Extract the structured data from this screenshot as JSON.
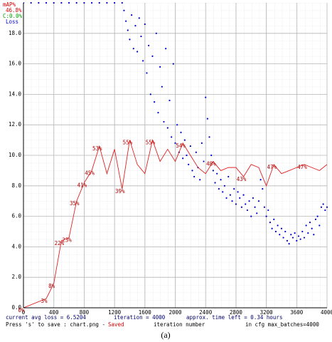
{
  "chart_data": {
    "type": "line",
    "legend": {
      "map_value": "46.8%",
      "class_value": "C:0.0%"
    },
    "xlim": [
      0,
      4000
    ],
    "ylim": [
      0,
      20
    ],
    "y2lim": [
      0,
      100
    ],
    "xticks": [
      0,
      400,
      800,
      1200,
      1600,
      2000,
      2400,
      2800,
      3200,
      3600,
      4000
    ],
    "yticks": [
      {
        "value": 0,
        "label": "0.0"
      },
      {
        "value": 2,
        "label": "2.0"
      },
      {
        "value": 4,
        "label": "4.0"
      },
      {
        "value": 6,
        "label": "6.0"
      },
      {
        "value": 8,
        "label": "8.0"
      },
      {
        "value": 10,
        "label": "10.0"
      },
      {
        "value": 12,
        "label": "12.0"
      },
      {
        "value": 14,
        "label": "14.0"
      },
      {
        "value": 16,
        "label": "16.0"
      },
      {
        "value": 18,
        "label": "18.0"
      }
    ],
    "grid": true,
    "series": [
      {
        "name": "Loss",
        "color": "#0000cc",
        "mark": "dot",
        "x": [
          0,
          100,
          200,
          300,
          400,
          500,
          600,
          700,
          800,
          900,
          1000,
          1100,
          1200,
          1300,
          1325,
          1350,
          1375,
          1400,
          1425,
          1450,
          1475,
          1500,
          1525,
          1550,
          1575,
          1600,
          1625,
          1650,
          1675,
          1700,
          1725,
          1750,
          1775,
          1800,
          1825,
          1850,
          1875,
          1900,
          1925,
          1950,
          1975,
          2000,
          2025,
          2050,
          2075,
          2100,
          2125,
          2150,
          2175,
          2200,
          2225,
          2250,
          2275,
          2300,
          2325,
          2350,
          2375,
          2400,
          2425,
          2450,
          2475,
          2500,
          2525,
          2550,
          2575,
          2600,
          2625,
          2650,
          2675,
          2700,
          2725,
          2750,
          2775,
          2800,
          2825,
          2850,
          2875,
          2900,
          2925,
          2950,
          2975,
          3000,
          3025,
          3050,
          3075,
          3100,
          3125,
          3150,
          3175,
          3200,
          3225,
          3250,
          3275,
          3300,
          3325,
          3350,
          3375,
          3400,
          3425,
          3450,
          3475,
          3500,
          3525,
          3550,
          3575,
          3600,
          3625,
          3650,
          3675,
          3700,
          3725,
          3750,
          3775,
          3800,
          3825,
          3850,
          3875,
          3900,
          3925,
          3950,
          3975,
          4000
        ],
        "values": [
          20,
          20,
          20,
          20,
          20,
          20,
          20,
          20,
          20,
          20,
          20,
          20,
          20,
          20,
          19.5,
          18.8,
          18.2,
          17.6,
          19.2,
          17.0,
          18.5,
          16.8,
          19.0,
          17.8,
          16.2,
          18.6,
          15.4,
          17.2,
          14.0,
          16.5,
          13.5,
          18.0,
          12.8,
          15.8,
          14.5,
          12.2,
          17.0,
          11.8,
          13.6,
          11.2,
          16.0,
          10.8,
          12.0,
          10.2,
          11.5,
          9.8,
          11.0,
          10.0,
          9.4,
          10.6,
          9.0,
          8.6,
          10.2,
          9.2,
          8.4,
          10.8,
          9.6,
          13.8,
          12.4,
          11.2,
          10.0,
          9.0,
          8.2,
          8.8,
          7.8,
          8.4,
          7.6,
          8.0,
          7.2,
          8.6,
          7.4,
          7.0,
          7.8,
          6.8,
          7.6,
          7.2,
          6.6,
          7.4,
          6.8,
          6.4,
          7.0,
          6.0,
          7.2,
          6.6,
          6.2,
          7.0,
          8.4,
          7.8,
          6.6,
          6.0,
          6.4,
          5.6,
          5.2,
          5.8,
          5.0,
          5.4,
          4.8,
          5.2,
          4.6,
          5.0,
          4.4,
          4.2,
          4.8,
          4.6,
          4.9,
          4.4,
          4.7,
          4.5,
          5.0,
          4.6,
          5.4,
          4.9,
          5.6,
          5.2,
          4.8,
          5.8,
          6.0,
          5.4,
          6.6,
          6.8,
          6.4,
          6.6
        ]
      },
      {
        "name": "mAP%",
        "color": "#e02020",
        "label_color": "#b00000",
        "mark": "line",
        "axis": "y2",
        "x": [
          0,
          300,
          400,
          500,
          600,
          700,
          800,
          900,
          1000,
          1100,
          1200,
          1300,
          1400,
          1500,
          1600,
          1700,
          1800,
          1900,
          2000,
          2100,
          2200,
          2300,
          2400,
          2500,
          2600,
          2700,
          2800,
          2900,
          3000,
          3100,
          3200,
          3300,
          3400,
          3500,
          3600,
          3700,
          3800,
          3900,
          4000
        ],
        "values": [
          0,
          3,
          8,
          22,
          23,
          35,
          41,
          45,
          53,
          44,
          52,
          39,
          55,
          47,
          44,
          55,
          48,
          52,
          48,
          54,
          50,
          46,
          44,
          48,
          45,
          46,
          46,
          43,
          47,
          46,
          40,
          47,
          44,
          45,
          46,
          47,
          46,
          45,
          47
        ],
        "value_labels": [
          "0%",
          "3%",
          "8%",
          "22%",
          "23%",
          "35%",
          "41%",
          "45%",
          "53%",
          null,
          null,
          "39%",
          "55%",
          null,
          null,
          "55%",
          null,
          null,
          null,
          "54%",
          null,
          null,
          null,
          "48%",
          null,
          null,
          null,
          "43%",
          null,
          null,
          null,
          "47%",
          null,
          null,
          null,
          "47%",
          null,
          null,
          null
        ]
      }
    ]
  },
  "footer": {
    "loss": "current avg loss = 6.5204",
    "iteration": "iteration = 4000",
    "time_left": "approx. time left = 0.34 hours",
    "save_hint": "Press 's' to save : chart.png - ",
    "saved": "Saved",
    "x_label": "iteration number",
    "max_batches": "in cfg max_batches=4000"
  },
  "caption": "(a)"
}
